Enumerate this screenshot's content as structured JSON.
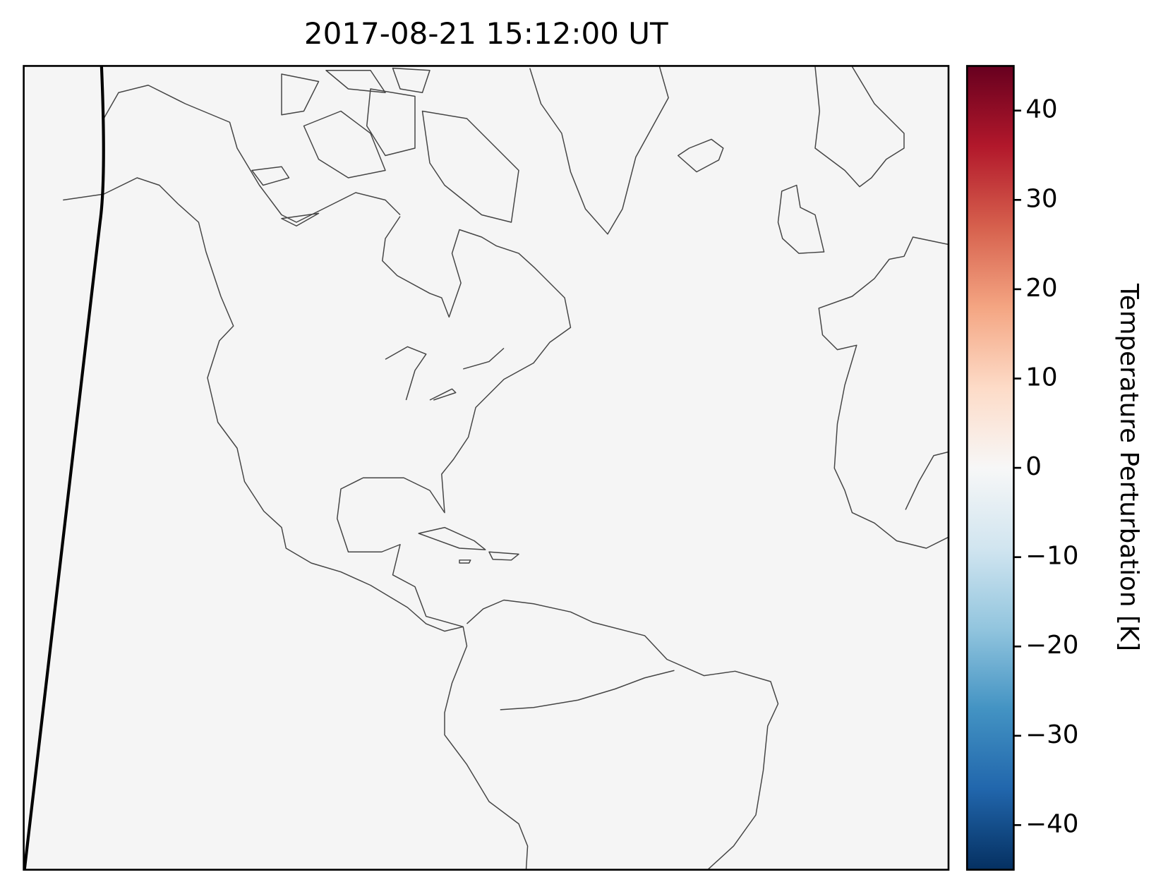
{
  "chart_data": {
    "type": "map",
    "title": "2017-08-21 15:12:00 UT",
    "colorbar": {
      "label": "Temperature Perturbation [K]",
      "colormap": "RdBu_r",
      "lim": [
        -45,
        45
      ],
      "ticks": [
        {
          "value": -40,
          "label": "−40"
        },
        {
          "value": -30,
          "label": "−30"
        },
        {
          "value": -20,
          "label": "−20"
        },
        {
          "value": -10,
          "label": "−10"
        },
        0,
        10,
        20,
        30,
        40
      ]
    }
  }
}
